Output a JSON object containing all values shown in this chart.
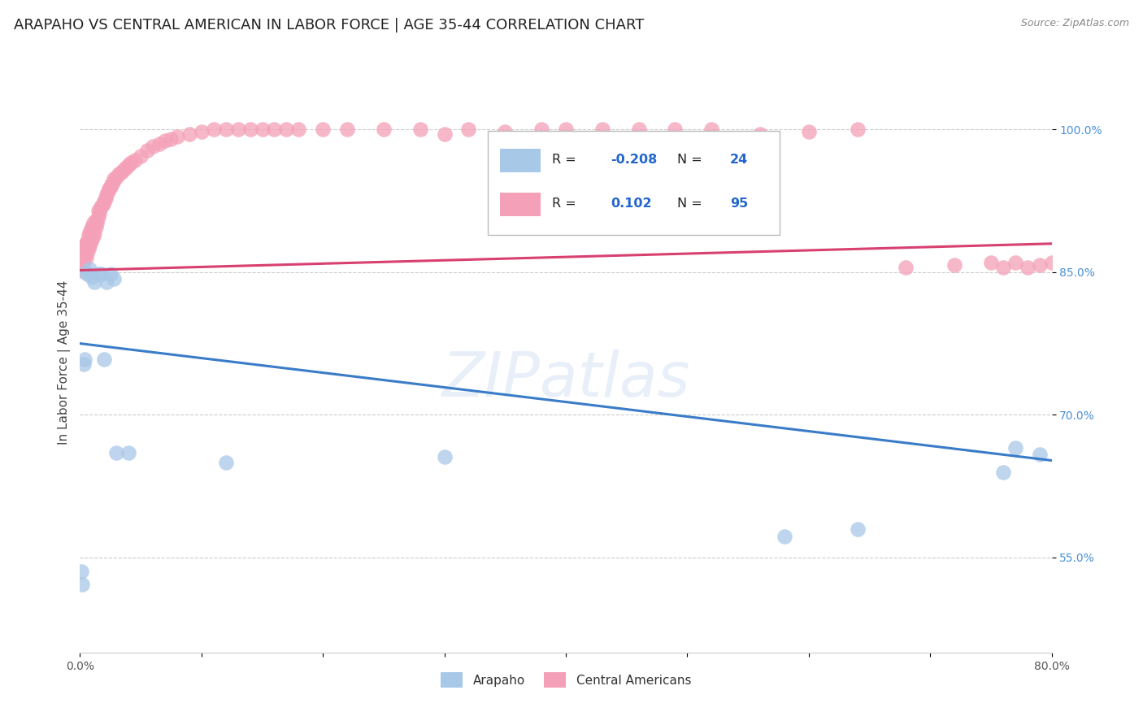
{
  "title": "ARAPAHO VS CENTRAL AMERICAN IN LABOR FORCE | AGE 35-44 CORRELATION CHART",
  "source": "Source: ZipAtlas.com",
  "ylabel": "In Labor Force | Age 35-44",
  "watermark": "ZIPatlas",
  "x_min": 0.0,
  "x_max": 0.8,
  "y_min": 0.45,
  "y_max": 1.06,
  "y_ticks": [
    0.55,
    0.7,
    0.85,
    1.0
  ],
  "y_tick_labels": [
    "55.0%",
    "70.0%",
    "85.0%",
    "100.0%"
  ],
  "x_ticks": [
    0.0,
    0.1,
    0.2,
    0.3,
    0.4,
    0.5,
    0.6,
    0.7,
    0.8
  ],
  "x_tick_labels": [
    "0.0%",
    "",
    "",
    "",
    "",
    "",
    "",
    "",
    "80.0%"
  ],
  "arapaho_color": "#a8c8e8",
  "central_color": "#f4a0b8",
  "arapaho_line_color": "#3a7cc8",
  "central_line_color": "#d84070",
  "background_color": "#ffffff",
  "grid_color": "#cccccc",
  "title_fontsize": 13,
  "axis_label_fontsize": 11,
  "tick_fontsize": 10,
  "arapaho_x": [
    0.001,
    0.002,
    0.003,
    0.004,
    0.005,
    0.006,
    0.008,
    0.01,
    0.012,
    0.015,
    0.018,
    0.02,
    0.022,
    0.025,
    0.028,
    0.03,
    0.04,
    0.12,
    0.3,
    0.58,
    0.64,
    0.76,
    0.77,
    0.79
  ],
  "arapaho_y": [
    0.535,
    0.522,
    0.753,
    0.758,
    0.85,
    0.848,
    0.853,
    0.845,
    0.84,
    0.848,
    0.848,
    0.758,
    0.84,
    0.848,
    0.843,
    0.66,
    0.66,
    0.65,
    0.656,
    0.572,
    0.58,
    0.64,
    0.665,
    0.658
  ],
  "central_x": [
    0.001,
    0.001,
    0.002,
    0.002,
    0.002,
    0.003,
    0.003,
    0.003,
    0.004,
    0.004,
    0.005,
    0.005,
    0.006,
    0.006,
    0.007,
    0.007,
    0.008,
    0.008,
    0.009,
    0.009,
    0.01,
    0.01,
    0.011,
    0.011,
    0.012,
    0.013,
    0.013,
    0.014,
    0.015,
    0.015,
    0.016,
    0.017,
    0.018,
    0.019,
    0.02,
    0.021,
    0.022,
    0.023,
    0.024,
    0.025,
    0.026,
    0.027,
    0.028,
    0.03,
    0.032,
    0.034,
    0.036,
    0.038,
    0.04,
    0.042,
    0.045,
    0.05,
    0.055,
    0.06,
    0.065,
    0.07,
    0.075,
    0.08,
    0.09,
    0.1,
    0.11,
    0.12,
    0.13,
    0.14,
    0.15,
    0.16,
    0.17,
    0.18,
    0.2,
    0.22,
    0.25,
    0.28,
    0.3,
    0.32,
    0.35,
    0.38,
    0.4,
    0.43,
    0.46,
    0.49,
    0.52,
    0.56,
    0.6,
    0.64,
    0.68,
    0.72,
    0.75,
    0.76,
    0.77,
    0.78,
    0.79,
    0.8,
    0.81,
    0.82,
    0.83
  ],
  "central_y": [
    0.852,
    0.86,
    0.858,
    0.865,
    0.872,
    0.862,
    0.87,
    0.878,
    0.868,
    0.875,
    0.865,
    0.88,
    0.87,
    0.882,
    0.875,
    0.888,
    0.878,
    0.892,
    0.882,
    0.895,
    0.885,
    0.898,
    0.888,
    0.902,
    0.892,
    0.898,
    0.905,
    0.902,
    0.908,
    0.915,
    0.912,
    0.918,
    0.92,
    0.922,
    0.925,
    0.928,
    0.932,
    0.935,
    0.938,
    0.94,
    0.942,
    0.945,
    0.948,
    0.95,
    0.953,
    0.955,
    0.958,
    0.96,
    0.963,
    0.965,
    0.968,
    0.972,
    0.978,
    0.982,
    0.985,
    0.988,
    0.99,
    0.993,
    0.995,
    0.998,
    1.0,
    1.0,
    1.0,
    1.0,
    1.0,
    1.0,
    1.0,
    1.0,
    1.0,
    1.0,
    1.0,
    1.0,
    0.995,
    1.0,
    0.998,
    1.0,
    1.0,
    1.0,
    1.0,
    1.0,
    1.0,
    0.995,
    0.998,
    1.0,
    0.855,
    0.858,
    0.86,
    0.855,
    0.86,
    0.855,
    0.858,
    0.86,
    0.855,
    0.858,
    0.86
  ],
  "ara_line_x0": 0.0,
  "ara_line_x1": 0.8,
  "ara_line_y0": 0.775,
  "ara_line_y1": 0.652,
  "cen_line_x0": 0.0,
  "cen_line_x1": 0.8,
  "cen_line_y0": 0.852,
  "cen_line_y1": 0.88
}
